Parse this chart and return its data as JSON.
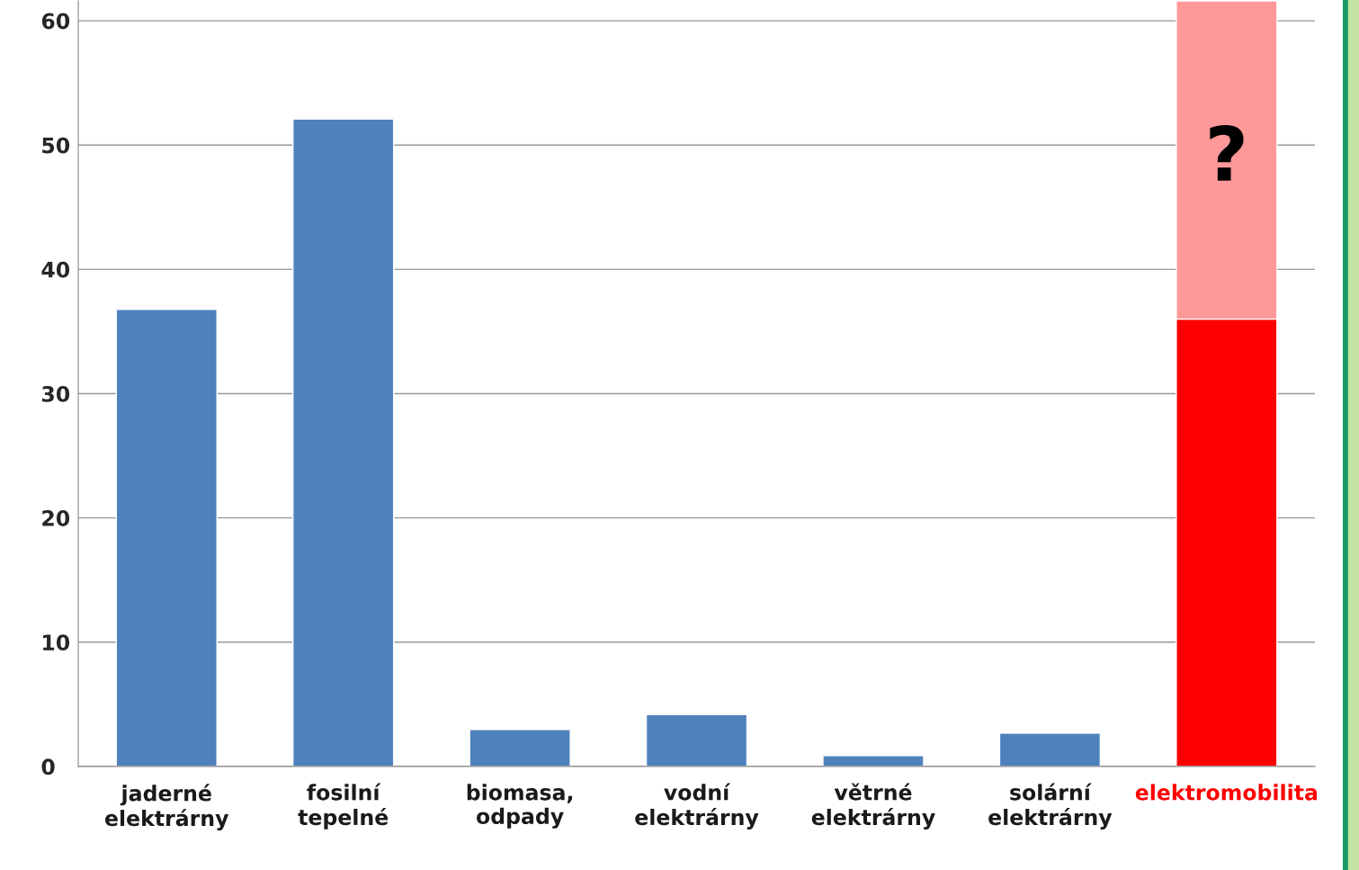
{
  "chart_data": {
    "type": "bar",
    "stacked": true,
    "categories": [
      "jaderné\nelektrárny",
      "fosilní\ntepelné",
      "biomasa,\nodpady",
      "vodní\nelektrárny",
      "větrné\nelektrárny",
      "solární\nelektrárny",
      "elektromobilita"
    ],
    "series": [
      {
        "color": "#4f81bd",
        "values": [
          36.8,
          52.1,
          3.0,
          4.2,
          0.9,
          2.7,
          null
        ]
      },
      {
        "color": "#ff0000",
        "values": [
          null,
          null,
          null,
          null,
          null,
          null,
          36.0
        ]
      },
      {
        "color": "#ff9999",
        "values": [
          null,
          null,
          null,
          null,
          null,
          null,
          25.6
        ]
      }
    ],
    "ylim": [
      0,
      61.6
    ],
    "yticks": [
      0,
      10,
      20,
      30,
      40,
      50,
      60
    ],
    "grid": "y",
    "annotations": [
      "?"
    ]
  }
}
